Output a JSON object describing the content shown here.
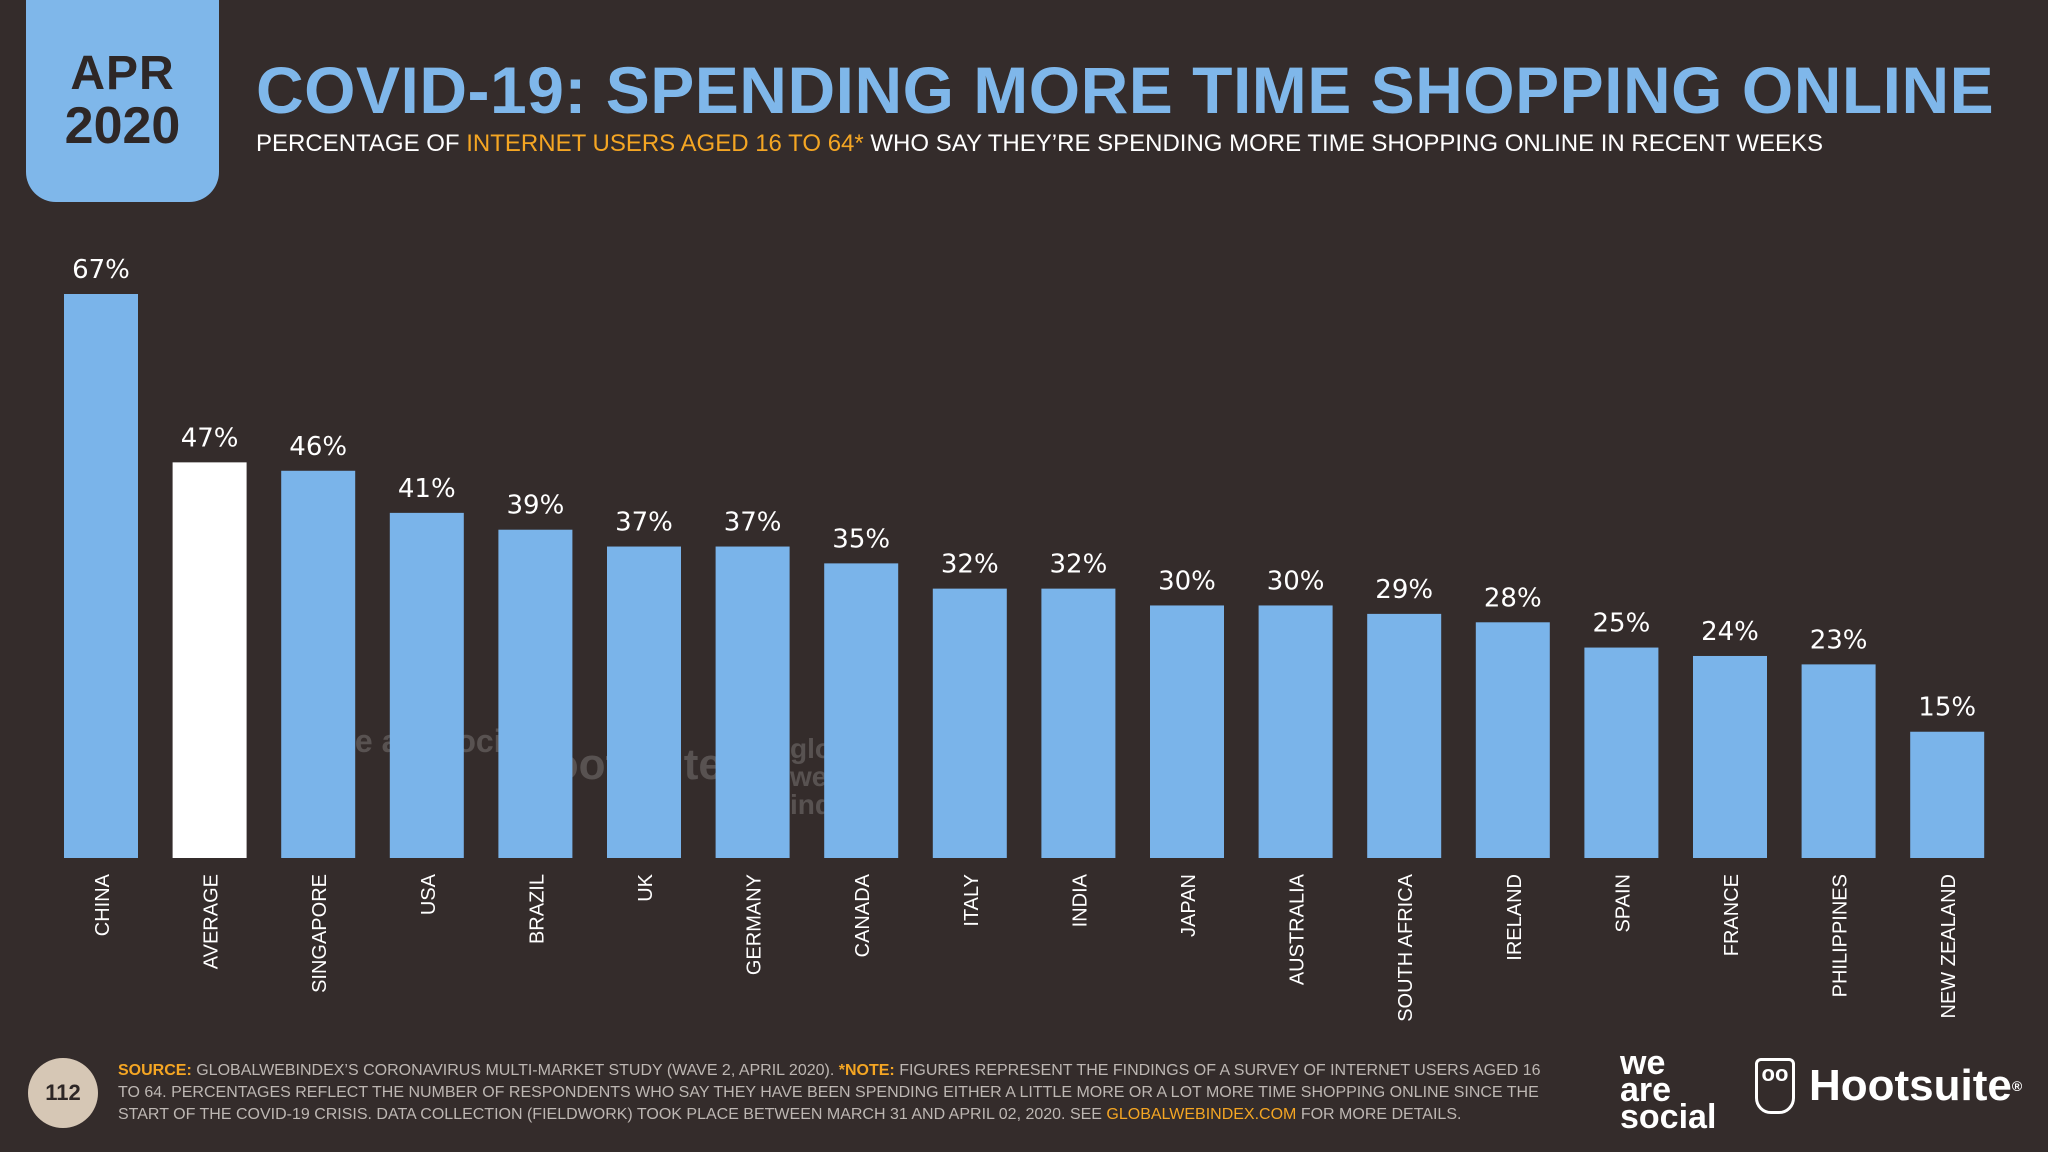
{
  "badge": {
    "month": "APR",
    "year": "2020"
  },
  "header": {
    "title": "COVID-19: SPENDING MORE TIME SHOPPING ONLINE",
    "subtitle_pre": "PERCENTAGE OF ",
    "subtitle_highlight": "INTERNET USERS AGED 16 TO 64*",
    "subtitle_post": " WHO SAY THEY’RE SPENDING MORE TIME SHOPPING ONLINE IN RECENT WEEKS"
  },
  "colors": {
    "background": "#342c2b",
    "bar": "#7ab4ea",
    "highlight_bar": "#ffffff",
    "accent": "#f5a623"
  },
  "chart_data": {
    "type": "bar",
    "categories": [
      "CHINA",
      "AVERAGE",
      "SINGAPORE",
      "USA",
      "BRAZIL",
      "UK",
      "GERMANY",
      "CANADA",
      "ITALY",
      "INDIA",
      "JAPAN",
      "AUSTRALIA",
      "SOUTH AFRICA",
      "IRELAND",
      "SPAIN",
      "FRANCE",
      "PHILIPPINES",
      "NEW ZEALAND"
    ],
    "values": [
      67,
      47,
      46,
      41,
      39,
      37,
      37,
      35,
      32,
      32,
      30,
      30,
      29,
      28,
      25,
      24,
      23,
      15
    ],
    "value_labels": [
      "67%",
      "47%",
      "46%",
      "41%",
      "39%",
      "37%",
      "37%",
      "35%",
      "32%",
      "32%",
      "30%",
      "30%",
      "29%",
      "28%",
      "25%",
      "24%",
      "23%",
      "15%"
    ],
    "highlight_category": "AVERAGE",
    "ylim": [
      0,
      67
    ],
    "grid": false
  },
  "watermarks": {
    "was": "we are social",
    "hs": "Hootsuite",
    "gwi": "global web index"
  },
  "footer": {
    "page_number": "112",
    "source_label": "SOURCE:",
    "source_text": " GLOBALWEBINDEX’S CORONAVIRUS MULTI-MARKET STUDY (WAVE 2, APRIL 2020). ",
    "note_label": "*NOTE:",
    "note_text": " FIGURES REPRESENT THE FINDINGS OF A SURVEY OF INTERNET USERS AGED 16 TO 64. PERCENTAGES REFLECT THE NUMBER OF RESPONDENTS WHO SAY THEY HAVE BEEN SPENDING EITHER A LITTLE MORE OR A LOT MORE TIME SHOPPING ONLINE SINCE THE START OF THE COVID-19 CRISIS. DATA COLLECTION (FIELDWORK) TOOK PLACE BETWEEN MARCH 31 AND APRIL 02, 2020. SEE ",
    "link_text": "GLOBALWEBINDEX.COM",
    "tail_text": " FOR MORE DETAILS."
  },
  "logos": {
    "was_line1": "we",
    "was_line2": "are",
    "was_line3": "social",
    "hootsuite": "Hootsuite",
    "hootsuite_mark": "®"
  }
}
